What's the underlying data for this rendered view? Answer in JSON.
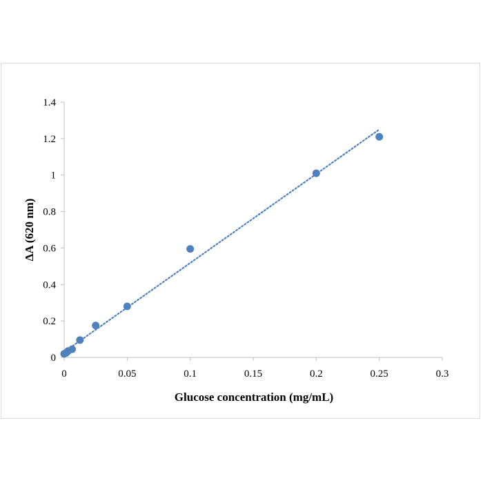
{
  "chart_data": {
    "type": "scatter",
    "xlabel": "Glucose concentration (mg/mL)",
    "ylabel": "ΔA (620 nm)",
    "xlim": [
      0,
      0.3
    ],
    "ylim": [
      0,
      1.4
    ],
    "x_ticks": [
      "0",
      "0.05",
      "0.1",
      "0.15",
      "0.2",
      "0.25",
      "0.3"
    ],
    "y_ticks": [
      "0",
      "0.2",
      "0.4",
      "0.6",
      "0.8",
      "1",
      "1.2",
      "1.4"
    ],
    "grid": false,
    "legend": "none",
    "marker_color": "#4f81bd",
    "trendline": {
      "style": "dotted",
      "color": "#4f81bd",
      "x": [
        0,
        0.25
      ],
      "y": [
        0.03,
        1.25
      ]
    },
    "series": [
      {
        "x": [
          0,
          0.0016,
          0.0031,
          0.0063,
          0.0125,
          0.025,
          0.05,
          0.1,
          0.2,
          0.25
        ],
        "y": [
          0.02,
          0.025,
          0.035,
          0.045,
          0.095,
          0.175,
          0.28,
          0.595,
          1.01,
          1.21
        ]
      }
    ]
  }
}
